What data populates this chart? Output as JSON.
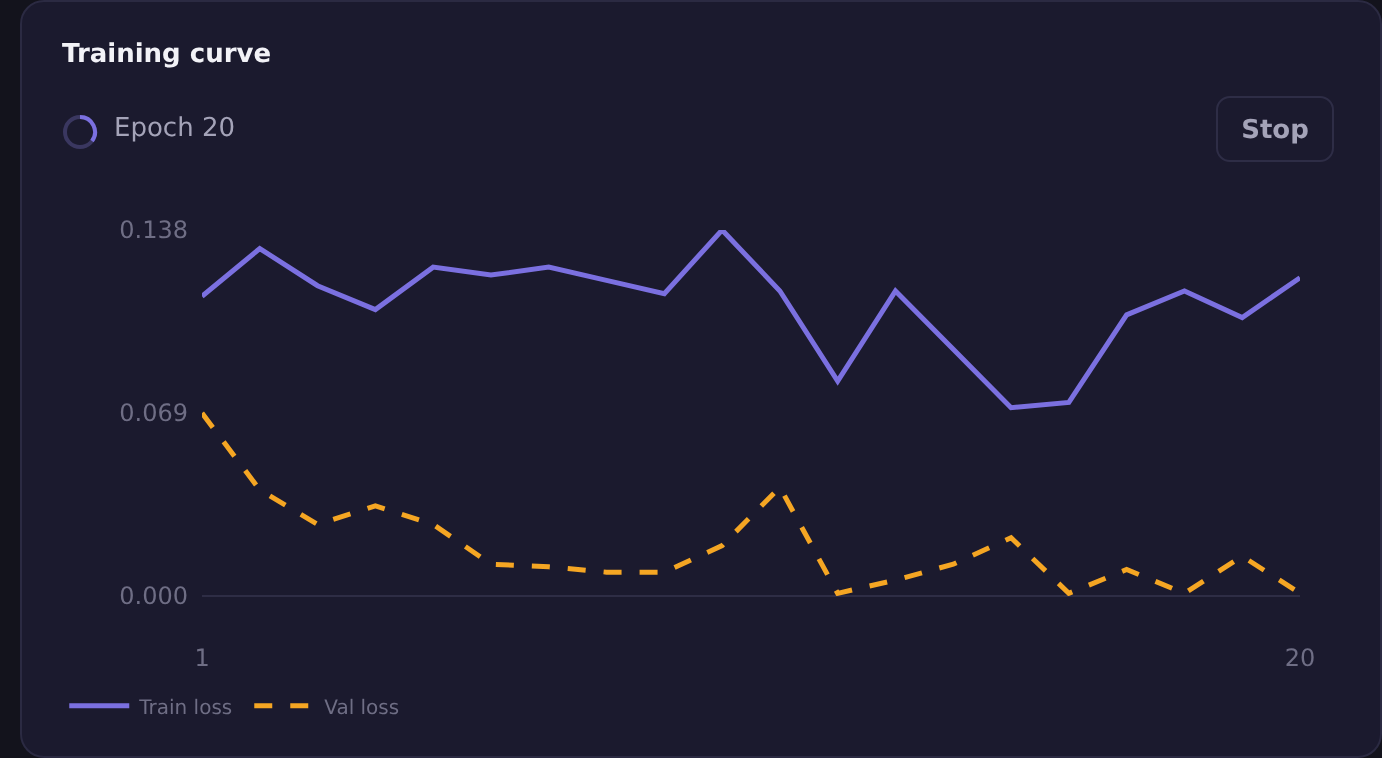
{
  "chart_data": {
    "type": "line",
    "title": "Training curve",
    "annotations": [
      "Epoch 20",
      "Stop"
    ],
    "x": [
      1,
      2,
      3,
      4,
      5,
      6,
      7,
      8,
      9,
      10,
      11,
      12,
      13,
      14,
      15,
      16,
      17,
      18,
      19,
      20
    ],
    "series": [
      {
        "name": "Train loss",
        "color": "#7b70e0",
        "line_style": "solid",
        "values": [
          0.113,
          0.131,
          0.117,
          0.108,
          0.124,
          0.121,
          0.124,
          0.119,
          0.114,
          0.138,
          0.115,
          0.081,
          0.115,
          0.093,
          0.071,
          0.073,
          0.106,
          0.115,
          0.105,
          0.12
        ]
      },
      {
        "name": "Val loss",
        "color": "#f5a623",
        "line_style": "dashed",
        "values": [
          0.069,
          0.04,
          0.027,
          0.034,
          0.027,
          0.012,
          0.011,
          0.009,
          0.009,
          0.019,
          0.041,
          0.001,
          0.006,
          0.012,
          0.022,
          0.001,
          0.01,
          0.001,
          0.015,
          0.001
        ]
      }
    ],
    "xlim": [
      1,
      20
    ],
    "xticks": [
      1,
      20
    ],
    "ylim": [
      0,
      0.138
    ],
    "yticks": [
      {
        "value": 0,
        "label": "0.000"
      },
      0.069,
      0.138
    ],
    "grid": false,
    "legend": "bottom left",
    "marker": "none"
  }
}
